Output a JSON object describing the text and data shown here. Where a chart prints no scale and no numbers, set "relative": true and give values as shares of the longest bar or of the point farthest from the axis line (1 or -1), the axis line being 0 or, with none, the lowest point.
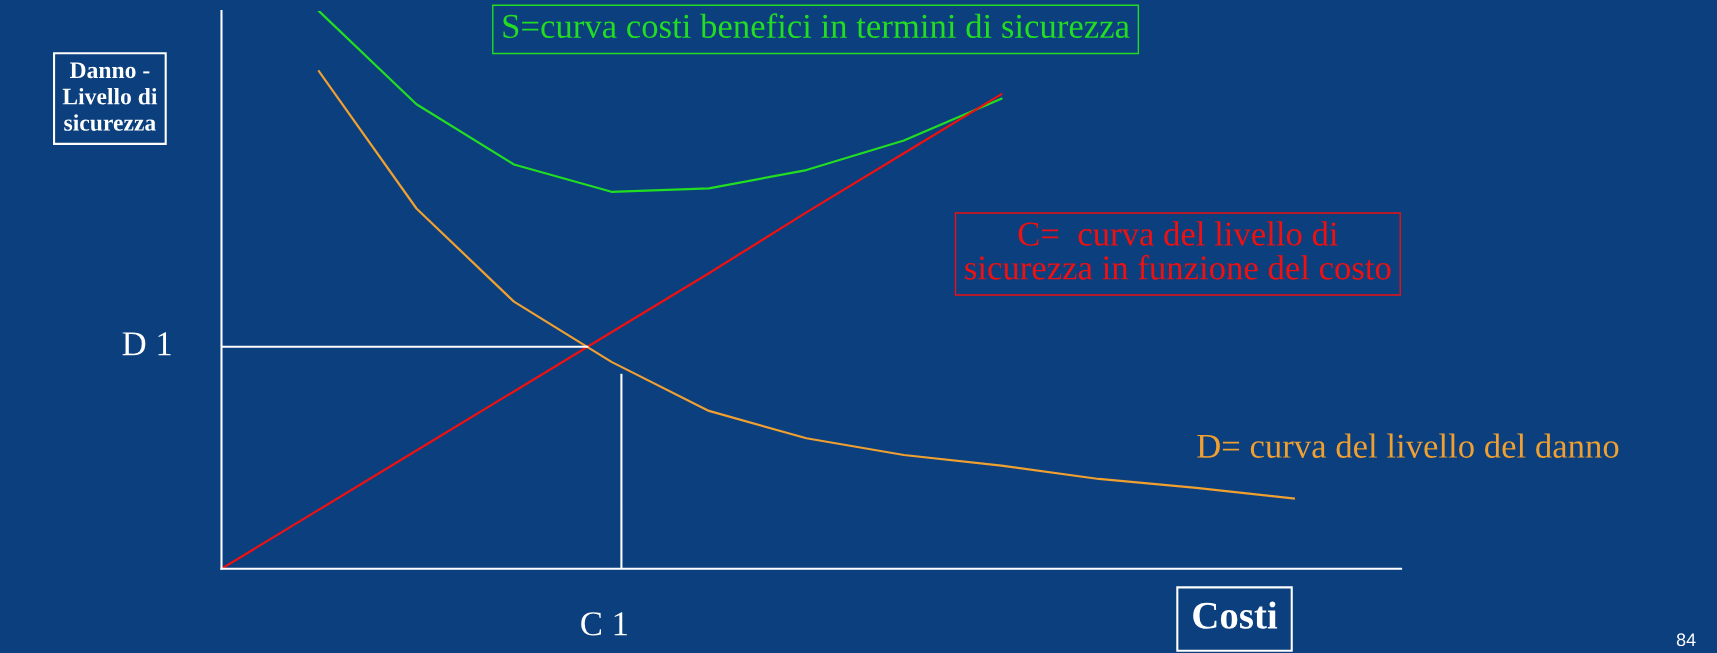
{
  "chart_data": {
    "type": "line",
    "relative": true,
    "ref_lines": [
      {
        "axis": "y",
        "value": 0.398,
        "label": "D 1",
        "color": "#ffffff"
      }
    ],
    "categories": [
      null,
      null,
      null,
      null,
      null,
      null,
      null,
      null,
      null,
      null,
      null,
      null
    ],
    "series": [
      {
        "name": "S=curva costi benefici in termini di sicurezza",
        "color": "#22dd22",
        "values": [
          null,
          1.0,
          0.833,
          0.725,
          0.676,
          0.682,
          0.715,
          0.768,
          0.843,
          null,
          null,
          null
        ]
      },
      {
        "name": "C=  curva del livello di\nsicurezza in funzione del costo",
        "color": "#ee1111",
        "values": [
          0,
          0.106,
          0.212,
          0.318,
          0.424,
          0.53,
          0.639,
          0.745,
          0.851,
          null,
          null,
          null
        ]
      },
      {
        "name": "D= curva del livello del danno",
        "color": "#f0a030",
        "values": [
          null,
          0.892,
          0.646,
          0.479,
          0.371,
          0.283,
          0.234,
          0.204,
          0.185,
          0.161,
          0.145,
          0.126
        ]
      }
    ],
    "xlabel": "Costi",
    "ylabel": "Danno -\nLivello di\nsicurezza",
    "annotations": [
      "C 1",
      "84"
    ]
  }
}
